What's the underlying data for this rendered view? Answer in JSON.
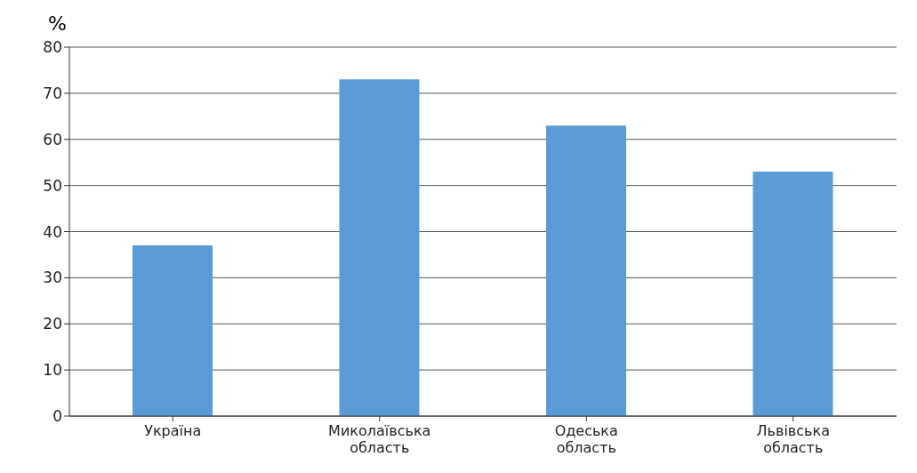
{
  "chart_data": {
    "type": "bar",
    "ylabel": "%",
    "categories": [
      "Україна",
      "Миколаївська\nобласть",
      "Одеська\nобласть",
      "Львівська\nобласть"
    ],
    "values": [
      37,
      73,
      63,
      53
    ],
    "color": "#5b9bd5",
    "ylim": [
      0,
      80
    ],
    "yticks": [
      0,
      10,
      20,
      30,
      40,
      50,
      60,
      70,
      80
    ],
    "grid": "y"
  }
}
